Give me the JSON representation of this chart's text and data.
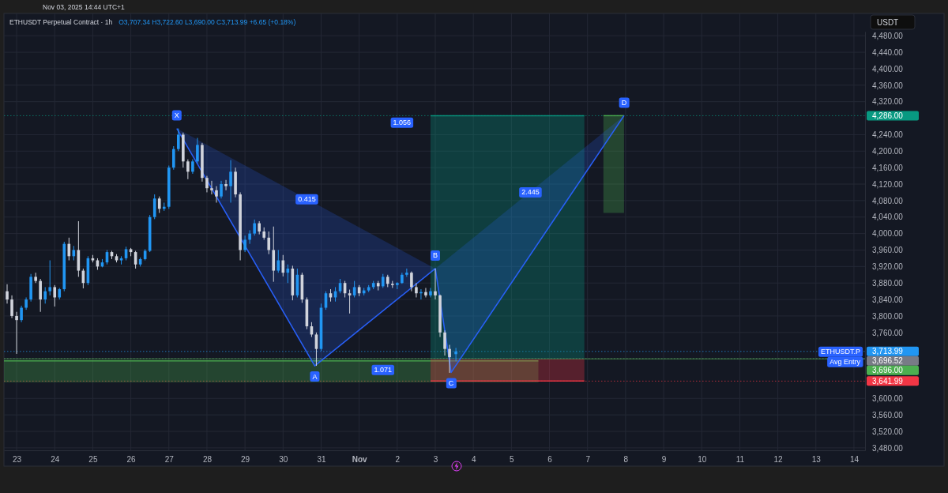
{
  "chart_data": {
    "type": "candlestick",
    "title": "ETHUSDT Perpetual Contract · 1h",
    "subtitle": "O3,707.34  H3,722.60  L3,690.00  C3,713.99  +6.65 (+0.18%)",
    "ylabel": "USDT",
    "annotations": [
      "Nov 03, 2025 14:44 UTC+1",
      {
        "text": "X",
        "x": "2025-10-27T05:00",
        "y": 4255
      },
      {
        "text": "A",
        "x": "2025-10-30T20:00",
        "y": 3679
      },
      {
        "text": "B",
        "x": "2025-11-03T00:00",
        "y": 3915
      },
      {
        "text": "C",
        "x": "2025-11-03T10:00",
        "y": 3663
      },
      {
        "text": "D",
        "x": "2025-11-07T23:00",
        "y": 4286
      },
      {
        "text": "0.415",
        "x": "2025-10-30T15:00",
        "y": 4084
      },
      {
        "text": "1.056",
        "x": "2025-11-02T03:00",
        "y": 4270
      },
      {
        "text": "1.071",
        "x": "2025-11-01T15:00",
        "y": 3670
      },
      {
        "text": "2.445",
        "x": "2025-11-05T12:00",
        "y": 4101
      },
      {
        "text": "ETHUSDT.P",
        "y": 3713.99
      },
      {
        "text": "Avg Entry",
        "y": 3696
      }
    ],
    "x": [
      "2025-10-22T18:00",
      "2025-10-22T21:00",
      "2025-10-23T00:00",
      "2025-10-23T03:00",
      "2025-10-23T06:00",
      "2025-10-23T09:00",
      "2025-10-23T12:00",
      "2025-10-23T15:00",
      "2025-10-23T18:00",
      "2025-10-23T21:00",
      "2025-10-24T00:00",
      "2025-10-24T03:00",
      "2025-10-24T06:00",
      "2025-10-24T09:00",
      "2025-10-24T12:00",
      "2025-10-24T15:00",
      "2025-10-24T18:00",
      "2025-10-24T21:00",
      "2025-10-25T00:00",
      "2025-10-25T03:00",
      "2025-10-25T06:00",
      "2025-10-25T09:00",
      "2025-10-25T12:00",
      "2025-10-25T15:00",
      "2025-10-25T18:00",
      "2025-10-25T21:00",
      "2025-10-26T00:00",
      "2025-10-26T03:00",
      "2025-10-26T06:00",
      "2025-10-26T09:00",
      "2025-10-26T12:00",
      "2025-10-26T15:00",
      "2025-10-26T18:00",
      "2025-10-26T21:00",
      "2025-10-27T00:00",
      "2025-10-27T03:00",
      "2025-10-27T06:00",
      "2025-10-27T09:00",
      "2025-10-27T12:00",
      "2025-10-27T15:00",
      "2025-10-27T18:00",
      "2025-10-27T21:00",
      "2025-10-28T00:00",
      "2025-10-28T03:00",
      "2025-10-28T06:00",
      "2025-10-28T09:00",
      "2025-10-28T12:00",
      "2025-10-28T15:00",
      "2025-10-28T18:00",
      "2025-10-28T21:00",
      "2025-10-29T00:00",
      "2025-10-29T03:00",
      "2025-10-29T06:00",
      "2025-10-29T09:00",
      "2025-10-29T12:00",
      "2025-10-29T15:00",
      "2025-10-29T18:00",
      "2025-10-29T21:00",
      "2025-10-30T00:00",
      "2025-10-30T03:00",
      "2025-10-30T06:00",
      "2025-10-30T09:00",
      "2025-10-30T12:00",
      "2025-10-30T15:00",
      "2025-10-30T18:00",
      "2025-10-30T21:00",
      "2025-10-31T00:00",
      "2025-10-31T03:00",
      "2025-10-31T06:00",
      "2025-10-31T09:00",
      "2025-10-31T12:00",
      "2025-10-31T15:00",
      "2025-10-31T18:00",
      "2025-10-31T21:00",
      "2025-11-01T00:00",
      "2025-11-01T03:00",
      "2025-11-01T06:00",
      "2025-11-01T09:00",
      "2025-11-01T12:00",
      "2025-11-01T15:00",
      "2025-11-01T18:00",
      "2025-11-01T21:00",
      "2025-11-02T00:00",
      "2025-11-02T03:00",
      "2025-11-02T06:00",
      "2025-11-02T09:00",
      "2025-11-02T12:00",
      "2025-11-02T15:00",
      "2025-11-02T18:00",
      "2025-11-02T21:00",
      "2025-11-03T00:00",
      "2025-11-03T03:00",
      "2025-11-03T06:00",
      "2025-11-03T09:00",
      "2025-11-03T13:00"
    ],
    "ohlc": [
      [
        3860,
        3877,
        3830,
        3840
      ],
      [
        3840,
        3850,
        3795,
        3800
      ],
      [
        3800,
        3810,
        3708,
        3790
      ],
      [
        3790,
        3825,
        3785,
        3820
      ],
      [
        3820,
        3845,
        3815,
        3840
      ],
      [
        3840,
        3902,
        3835,
        3895
      ],
      [
        3895,
        3905,
        3880,
        3885
      ],
      [
        3885,
        3890,
        3810,
        3840
      ],
      [
        3840,
        3870,
        3830,
        3860
      ],
      [
        3860,
        3935,
        3850,
        3870
      ],
      [
        3870,
        3875,
        3823,
        3845
      ],
      [
        3845,
        3868,
        3840,
        3865
      ],
      [
        3865,
        3980,
        3860,
        3975
      ],
      [
        3975,
        3990,
        3935,
        3945
      ],
      [
        3945,
        3970,
        3935,
        3960
      ],
      [
        3960,
        4030,
        3895,
        3910
      ],
      [
        3910,
        3915,
        3867,
        3880
      ],
      [
        3880,
        3945,
        3875,
        3940
      ],
      [
        3940,
        3948,
        3930,
        3935
      ],
      [
        3935,
        3940,
        3912,
        3920
      ],
      [
        3920,
        3938,
        3918,
        3930
      ],
      [
        3930,
        3960,
        3925,
        3955
      ],
      [
        3955,
        3958,
        3938,
        3945
      ],
      [
        3945,
        3950,
        3930,
        3935
      ],
      [
        3935,
        3945,
        3925,
        3940
      ],
      [
        3940,
        3968,
        3935,
        3962
      ],
      [
        3962,
        3965,
        3945,
        3955
      ],
      [
        3955,
        3958,
        3915,
        3925
      ],
      [
        3925,
        3942,
        3920,
        3938
      ],
      [
        3938,
        3962,
        3935,
        3958
      ],
      [
        3958,
        4045,
        3955,
        4040
      ],
      [
        4040,
        4095,
        4035,
        4085
      ],
      [
        4085,
        4090,
        4050,
        4060
      ],
      [
        4060,
        4075,
        4055,
        4065
      ],
      [
        4065,
        4165,
        4060,
        4160
      ],
      [
        4160,
        4212,
        4155,
        4205
      ],
      [
        4205,
        4255,
        4200,
        4240
      ],
      [
        4240,
        4245,
        4160,
        4175
      ],
      [
        4175,
        4180,
        4132,
        4150
      ],
      [
        4150,
        4180,
        4145,
        4175
      ],
      [
        4175,
        4232,
        4170,
        4215
      ],
      [
        4215,
        4220,
        4126,
        4135
      ],
      [
        4135,
        4140,
        4100,
        4110
      ],
      [
        4110,
        4128,
        4095,
        4105
      ],
      [
        4105,
        4115,
        4075,
        4090
      ],
      [
        4090,
        4128,
        4085,
        4120
      ],
      [
        4120,
        4130,
        4105,
        4115
      ],
      [
        4115,
        4178,
        4075,
        4150
      ],
      [
        4150,
        4160,
        4088,
        4095
      ],
      [
        4095,
        4100,
        3935,
        3960
      ],
      [
        3960,
        3995,
        3955,
        3985
      ],
      [
        3985,
        4008,
        3975,
        4000
      ],
      [
        4000,
        4034,
        3995,
        4025
      ],
      [
        4025,
        4030,
        3998,
        4005
      ],
      [
        4005,
        4015,
        3985,
        3990
      ],
      [
        3990,
        4005,
        3950,
        3960
      ],
      [
        3960,
        4017,
        3883,
        3910
      ],
      [
        3910,
        3960,
        3905,
        3935
      ],
      [
        3935,
        3948,
        3896,
        3905
      ],
      [
        3905,
        3925,
        3880,
        3915
      ],
      [
        3915,
        3922,
        3838,
        3850
      ],
      [
        3850,
        3915,
        3845,
        3900
      ],
      [
        3900,
        3905,
        3832,
        3840
      ],
      [
        3840,
        3845,
        3768,
        3775
      ],
      [
        3775,
        3785,
        3749,
        3755
      ],
      [
        3755,
        3760,
        3679,
        3720
      ],
      [
        3720,
        3830,
        3715,
        3820
      ],
      [
        3820,
        3860,
        3815,
        3855
      ],
      [
        3855,
        3865,
        3835,
        3845
      ],
      [
        3845,
        3870,
        3835,
        3860
      ],
      [
        3860,
        3890,
        3855,
        3880
      ],
      [
        3880,
        3885,
        3845,
        3855
      ],
      [
        3855,
        3864,
        3806,
        3850
      ],
      [
        3850,
        3885,
        3845,
        3870
      ],
      [
        3870,
        3875,
        3848,
        3855
      ],
      [
        3855,
        3868,
        3850,
        3862
      ],
      [
        3862,
        3875,
        3858,
        3870
      ],
      [
        3870,
        3885,
        3865,
        3880
      ],
      [
        3880,
        3885,
        3862,
        3872
      ],
      [
        3872,
        3902,
        3868,
        3895
      ],
      [
        3895,
        3900,
        3870,
        3878
      ],
      [
        3878,
        3885,
        3868,
        3875
      ],
      [
        3875,
        3882,
        3865,
        3880
      ],
      [
        3880,
        3905,
        3878,
        3900
      ],
      [
        3900,
        3915,
        3895,
        3905
      ],
      [
        3905,
        3908,
        3860,
        3870
      ],
      [
        3870,
        3880,
        3845,
        3855
      ],
      [
        3855,
        3865,
        3840,
        3858
      ],
      [
        3858,
        3868,
        3845,
        3850
      ],
      [
        3850,
        3868,
        3845,
        3860
      ],
      [
        3860,
        3915,
        3840,
        3850
      ],
      [
        3850,
        3852,
        3749,
        3760
      ],
      [
        3760,
        3765,
        3704,
        3720
      ],
      [
        3720,
        3730,
        3662,
        3700
      ],
      [
        3707.34,
        3722.6,
        3690.0,
        3713.99
      ]
    ],
    "series": [
      {
        "type": "line",
        "color": "#4caf50",
        "x": [
          "2025-10-22T16:00",
          "2025-11-05T17:00"
        ],
        "values": [
          3691,
          3691
        ],
        "lower": [
          3639,
          3639
        ],
        "upper": [
          3691,
          3691
        ]
      },
      {
        "type": "line",
        "color": "#089981",
        "x": [
          "2025-11-02T21:00",
          "2025-11-06T22:00"
        ],
        "values": [
          4286,
          4286
        ],
        "lower": [
          3696,
          3696
        ],
        "upper": [
          4286,
          4286
        ]
      },
      {
        "type": "line",
        "color": "#f23645",
        "x": [
          "2025-11-02T21:00",
          "2025-11-06T22:00"
        ],
        "values": [
          3641.99,
          3641.99
        ],
        "lower": [
          3641.99,
          3641.99
        ],
        "upper": [
          3696,
          3696
        ]
      },
      {
        "type": "line",
        "color": "#4caf50",
        "x": [
          "2025-11-07T10:00",
          "2025-11-07T23:00"
        ],
        "values": [
          4286,
          4286
        ],
        "lower": [
          4050,
          4050
        ],
        "upper": [
          4286,
          4286
        ]
      },
      {
        "type": "line",
        "color": "#2962ff",
        "x": [
          "2025-10-27T05:00",
          "2025-10-30T20:00",
          "2025-11-03T00:00",
          "2025-11-03T10:00",
          "2025-11-07T23:00"
        ],
        "values": [
          4255,
          3679,
          3915,
          3663,
          4286
        ]
      }
    ],
    "ref_lines": [
      {
        "axis": "y",
        "value": 4286,
        "label": "4,286.00",
        "color": "#089981",
        "line_style": "dotted"
      },
      {
        "axis": "y",
        "value": 3713.99,
        "label": "3,713.99",
        "color": "#2196f3",
        "line_style": "dotted"
      },
      {
        "axis": "y",
        "value": 3696.52,
        "label": "3,696.52",
        "color": "#787b86",
        "line_style": "dotted"
      },
      {
        "axis": "y",
        "value": 3696,
        "label": "3,696.00",
        "color": "#4caf50",
        "line_style": "solid"
      },
      {
        "axis": "y",
        "value": 3641.99,
        "label": "3,641.99",
        "color": "#f23645",
        "line_style": "dotted"
      }
    ],
    "xlim": [
      "2025-10-22T16:00",
      "2025-11-14T07:00"
    ],
    "xticks": [
      {
        "value": "2025-10-23",
        "label": "23"
      },
      {
        "value": "2025-10-24",
        "label": "24"
      },
      {
        "value": "2025-10-25",
        "label": "25"
      },
      {
        "value": "2025-10-26",
        "label": "26"
      },
      {
        "value": "2025-10-27",
        "label": "27"
      },
      {
        "value": "2025-10-28",
        "label": "28"
      },
      {
        "value": "2025-10-29",
        "label": "29"
      },
      {
        "value": "2025-10-30",
        "label": "30"
      },
      {
        "value": "2025-10-31",
        "label": "31"
      },
      {
        "value": "2025-11-01",
        "label": "Nov"
      },
      {
        "value": "2025-11-02",
        "label": "2"
      },
      {
        "value": "2025-11-03",
        "label": "3"
      },
      {
        "value": "2025-11-04",
        "label": "4"
      },
      {
        "value": "2025-11-05",
        "label": "5"
      },
      {
        "value": "2025-11-06",
        "label": "6"
      },
      {
        "value": "2025-11-07",
        "label": "7"
      },
      {
        "value": "2025-11-08",
        "label": "8"
      },
      {
        "value": "2025-11-09",
        "label": "9"
      },
      {
        "value": "2025-11-10",
        "label": "10"
      },
      {
        "value": "2025-11-11",
        "label": "11"
      },
      {
        "value": "2025-11-12",
        "label": "12"
      },
      {
        "value": "2025-11-13",
        "label": "13"
      },
      {
        "value": "2025-11-14",
        "label": "14"
      }
    ],
    "ylim": [
      3474,
      4490
    ],
    "yticks": [
      {
        "value": 3480,
        "label": "3,480.00"
      },
      {
        "value": 3520,
        "label": "3,520.00"
      },
      {
        "value": 3560,
        "label": "3,560.00"
      },
      {
        "value": 3600,
        "label": "3,600.00"
      },
      {
        "value": 3760,
        "label": "3,760.00"
      },
      {
        "value": 3800,
        "label": "3,800.00"
      },
      {
        "value": 3840,
        "label": "3,840.00"
      },
      {
        "value": 3880,
        "label": "3,880.00"
      },
      {
        "value": 3920,
        "label": "3,920.00"
      },
      {
        "value": 3960,
        "label": "3,960.00"
      },
      {
        "value": 4000,
        "label": "4,000.00"
      },
      {
        "value": 4040,
        "label": "4,040.00"
      },
      {
        "value": 4080,
        "label": "4,080.00"
      },
      {
        "value": 4120,
        "label": "4,120.00"
      },
      {
        "value": 4160,
        "label": "4,160.00"
      },
      {
        "value": 4200,
        "label": "4,200.00"
      },
      {
        "value": 4240,
        "label": "4,240.00"
      },
      {
        "value": 4320,
        "label": "4,320.00"
      },
      {
        "value": 4360,
        "label": "4,360.00"
      },
      {
        "value": 4400,
        "label": "4,400.00"
      },
      {
        "value": 4440,
        "label": "4,440.00"
      },
      {
        "value": 4480,
        "label": "4,480.00"
      }
    ],
    "grid": true
  }
}
